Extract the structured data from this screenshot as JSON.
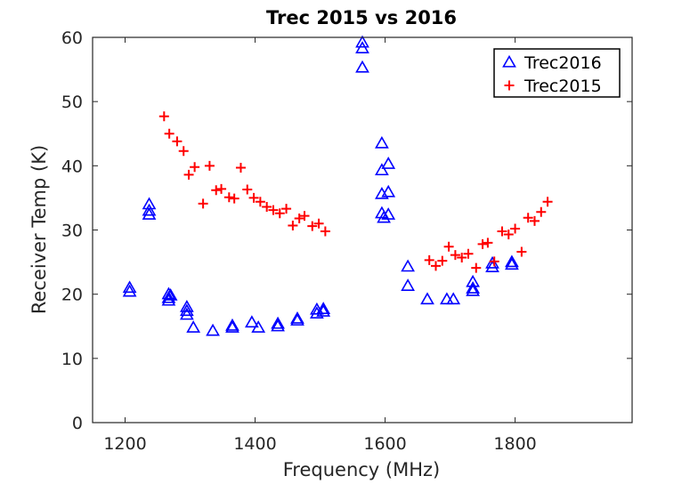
{
  "chart_data": {
    "type": "scatter",
    "title": "Trec 2015 vs 2016",
    "xlabel": "Frequency (MHz)",
    "ylabel": "Receiver Temp (K)",
    "xlim": [
      1150,
      1980
    ],
    "ylim": [
      0,
      60
    ],
    "xticks": [
      1200,
      1400,
      1600,
      1800
    ],
    "xtick_labels": [
      "1200",
      "1400",
      "1600",
      "1800"
    ],
    "yticks": [
      0,
      10,
      20,
      30,
      40,
      50,
      60
    ],
    "ytick_labels": [
      "0",
      "10",
      "20",
      "30",
      "40",
      "50",
      "60"
    ],
    "grid": false,
    "legend_position": "top-right",
    "series": [
      {
        "name": "Trec2016",
        "marker": "triangle",
        "color": "#0000ff",
        "points": [
          [
            1207,
            21.0
          ],
          [
            1207,
            20.4
          ],
          [
            1237,
            34.0
          ],
          [
            1237,
            33.0
          ],
          [
            1237,
            32.4
          ],
          [
            1267,
            20.0
          ],
          [
            1267,
            19.4
          ],
          [
            1267,
            19.0
          ],
          [
            1270,
            19.8
          ],
          [
            1295,
            18.0
          ],
          [
            1295,
            17.4
          ],
          [
            1295,
            16.8
          ],
          [
            1305,
            14.8
          ],
          [
            1335,
            14.3
          ],
          [
            1365,
            14.8
          ],
          [
            1365,
            15.1
          ],
          [
            1395,
            15.6
          ],
          [
            1405,
            14.8
          ],
          [
            1435,
            15.0
          ],
          [
            1435,
            15.4
          ],
          [
            1465,
            15.9
          ],
          [
            1465,
            16.2
          ],
          [
            1495,
            17.0
          ],
          [
            1495,
            17.6
          ],
          [
            1505,
            17.3
          ],
          [
            1505,
            17.7
          ],
          [
            1565,
            59.2
          ],
          [
            1565,
            58.3
          ],
          [
            1565,
            55.3
          ],
          [
            1595,
            43.5
          ],
          [
            1595,
            39.3
          ],
          [
            1595,
            35.6
          ],
          [
            1595,
            32.6
          ],
          [
            1598,
            31.9
          ],
          [
            1605,
            40.3
          ],
          [
            1605,
            35.9
          ],
          [
            1605,
            32.4
          ],
          [
            1635,
            24.3
          ],
          [
            1635,
            21.3
          ],
          [
            1665,
            19.2
          ],
          [
            1695,
            19.2
          ],
          [
            1705,
            19.2
          ],
          [
            1735,
            21.9
          ],
          [
            1735,
            20.9
          ],
          [
            1735,
            20.5
          ],
          [
            1765,
            24.2
          ],
          [
            1765,
            24.8
          ],
          [
            1795,
            24.6
          ],
          [
            1795,
            25.0
          ]
        ]
      },
      {
        "name": "Trec2015",
        "marker": "plus",
        "color": "#ff0000",
        "points": [
          [
            1260,
            47.7
          ],
          [
            1268,
            45.0
          ],
          [
            1280,
            43.8
          ],
          [
            1290,
            42.3
          ],
          [
            1298,
            38.6
          ],
          [
            1307,
            39.8
          ],
          [
            1320,
            34.1
          ],
          [
            1330,
            40.0
          ],
          [
            1340,
            36.2
          ],
          [
            1348,
            36.4
          ],
          [
            1360,
            35.1
          ],
          [
            1368,
            34.9
          ],
          [
            1378,
            39.7
          ],
          [
            1388,
            36.3
          ],
          [
            1398,
            35.0
          ],
          [
            1408,
            34.4
          ],
          [
            1418,
            33.6
          ],
          [
            1428,
            33.1
          ],
          [
            1438,
            32.6
          ],
          [
            1448,
            33.3
          ],
          [
            1458,
            30.7
          ],
          [
            1468,
            31.8
          ],
          [
            1476,
            32.2
          ],
          [
            1488,
            30.6
          ],
          [
            1498,
            31.0
          ],
          [
            1508,
            29.8
          ],
          [
            1668,
            25.3
          ],
          [
            1678,
            24.4
          ],
          [
            1688,
            25.2
          ],
          [
            1698,
            27.4
          ],
          [
            1708,
            26.1
          ],
          [
            1718,
            25.7
          ],
          [
            1728,
            26.3
          ],
          [
            1740,
            24.1
          ],
          [
            1750,
            27.8
          ],
          [
            1758,
            28.0
          ],
          [
            1768,
            25.1
          ],
          [
            1780,
            29.8
          ],
          [
            1790,
            29.3
          ],
          [
            1800,
            30.2
          ],
          [
            1810,
            26.6
          ],
          [
            1820,
            31.9
          ],
          [
            1830,
            31.4
          ],
          [
            1840,
            32.8
          ],
          [
            1850,
            34.4
          ]
        ]
      }
    ]
  }
}
